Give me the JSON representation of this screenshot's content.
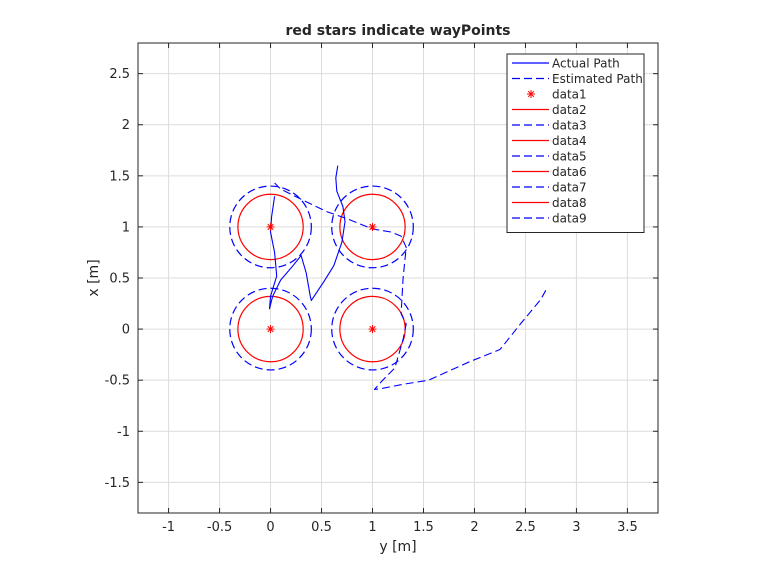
{
  "chart_data": {
    "type": "line",
    "title": "red stars indicate wayPoints",
    "xlabel": "y [m]",
    "ylabel": "x [m]",
    "xlim": [
      -1.3,
      3.8
    ],
    "ylim": [
      -1.8,
      2.8
    ],
    "xticks": [
      -1,
      -0.5,
      0,
      0.5,
      1,
      1.5,
      2,
      2.5,
      3,
      3.5
    ],
    "xtick_labels": [
      "-1",
      "-0.5",
      "0",
      "0.5",
      "1",
      "1.5",
      "2",
      "2.5",
      "3",
      "3.5"
    ],
    "yticks": [
      -1.5,
      -1,
      -0.5,
      0,
      0.5,
      1,
      1.5,
      2,
      2.5
    ],
    "ytick_labels": [
      "-1.5",
      "-1",
      "-0.5",
      "0",
      "0.5",
      "1",
      "1.5",
      "2",
      "2.5"
    ],
    "grid": true,
    "legend_position": "top-right",
    "legend": [
      {
        "label": "Actual Path",
        "style": "solid",
        "color": "#0000ff",
        "marker": ""
      },
      {
        "label": "Estimated Path",
        "style": "dashed",
        "color": "#0000ff",
        "marker": ""
      },
      {
        "label": "data1",
        "style": "none",
        "color": "#ff0000",
        "marker": "*"
      },
      {
        "label": "data2",
        "style": "solid",
        "color": "#ff0000",
        "marker": ""
      },
      {
        "label": "data3",
        "style": "dashed",
        "color": "#0000ff",
        "marker": ""
      },
      {
        "label": "data4",
        "style": "solid",
        "color": "#ff0000",
        "marker": ""
      },
      {
        "label": "data5",
        "style": "dashed",
        "color": "#0000ff",
        "marker": ""
      },
      {
        "label": "data6",
        "style": "solid",
        "color": "#ff0000",
        "marker": ""
      },
      {
        "label": "data7",
        "style": "dashed",
        "color": "#0000ff",
        "marker": ""
      },
      {
        "label": "data8",
        "style": "solid",
        "color": "#ff0000",
        "marker": ""
      },
      {
        "label": "data9",
        "style": "dashed",
        "color": "#0000ff",
        "marker": ""
      }
    ],
    "waypoints": [
      [
        0,
        1
      ],
      [
        1,
        1
      ],
      [
        0,
        0
      ],
      [
        1,
        0
      ]
    ],
    "circles": [
      {
        "center": [
          0,
          1
        ],
        "radius": 0.32,
        "style": "solid",
        "color": "#ff0000"
      },
      {
        "center": [
          0,
          1
        ],
        "radius": 0.4,
        "style": "dashed",
        "color": "#0000ff"
      },
      {
        "center": [
          1,
          1
        ],
        "radius": 0.32,
        "style": "solid",
        "color": "#ff0000"
      },
      {
        "center": [
          1,
          1
        ],
        "radius": 0.4,
        "style": "dashed",
        "color": "#0000ff"
      },
      {
        "center": [
          0,
          0
        ],
        "radius": 0.32,
        "style": "solid",
        "color": "#ff0000"
      },
      {
        "center": [
          0,
          0
        ],
        "radius": 0.4,
        "style": "dashed",
        "color": "#0000ff"
      },
      {
        "center": [
          1,
          0
        ],
        "radius": 0.32,
        "style": "solid",
        "color": "#ff0000"
      },
      {
        "center": [
          1,
          0
        ],
        "radius": 0.4,
        "style": "dashed",
        "color": "#0000ff"
      }
    ],
    "series": [
      {
        "name": "Actual Path",
        "style": "solid",
        "color": "#0000ff",
        "points": [
          [
            0.66,
            1.6
          ],
          [
            0.64,
            1.48
          ],
          [
            0.65,
            1.35
          ],
          [
            0.71,
            1.2
          ],
          [
            0.73,
            1.05
          ],
          [
            0.7,
            0.85
          ],
          [
            0.62,
            0.62
          ],
          [
            0.52,
            0.46
          ],
          [
            0.44,
            0.34
          ],
          [
            0.4,
            0.28
          ],
          [
            0.39,
            0.32
          ],
          [
            0.35,
            0.55
          ],
          [
            0.3,
            0.72
          ],
          [
            0.22,
            0.62
          ],
          [
            0.1,
            0.48
          ],
          [
            0.02,
            0.32
          ],
          [
            -0.01,
            0.2
          ],
          [
            0.0,
            0.32
          ],
          [
            0.06,
            0.52
          ],
          [
            0.04,
            0.75
          ],
          [
            0.0,
            0.95
          ],
          [
            0.01,
            1.1
          ],
          [
            0.04,
            1.3
          ]
        ]
      },
      {
        "name": "Estimated Path",
        "style": "dashed",
        "color": "#0000ff",
        "points": [
          [
            2.7,
            0.38
          ],
          [
            2.65,
            0.29
          ],
          [
            2.45,
            0.05
          ],
          [
            2.25,
            -0.2
          ],
          [
            1.95,
            -0.32
          ],
          [
            1.55,
            -0.5
          ],
          [
            1.3,
            -0.54
          ],
          [
            1.1,
            -0.58
          ],
          [
            1.02,
            -0.59
          ],
          [
            1.1,
            -0.5
          ],
          [
            1.22,
            -0.38
          ],
          [
            1.3,
            -0.1
          ],
          [
            1.33,
            0.05
          ],
          [
            1.28,
            0.15
          ],
          [
            1.3,
            0.5
          ],
          [
            1.33,
            0.8
          ],
          [
            1.28,
            0.91
          ],
          [
            1.18,
            0.95
          ],
          [
            1.0,
            0.98
          ],
          [
            0.75,
            1.08
          ],
          [
            0.55,
            1.15
          ],
          [
            0.3,
            1.27
          ],
          [
            0.1,
            1.37
          ],
          [
            0.04,
            1.43
          ]
        ]
      }
    ]
  }
}
